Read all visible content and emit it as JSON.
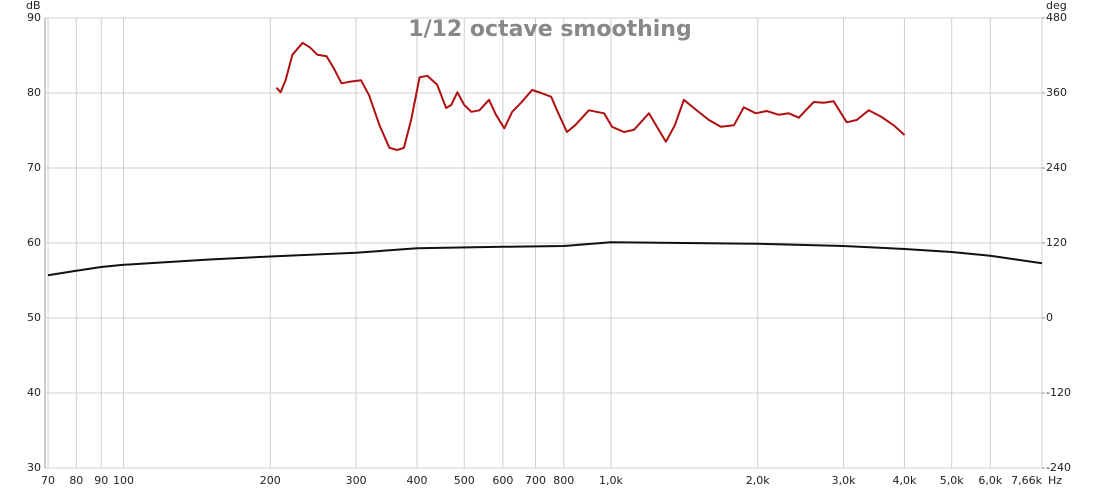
{
  "chart_data": {
    "type": "line",
    "title": "1/12 octave smoothing",
    "x_label": "Hz",
    "y_label": "dB",
    "y2_label": "deg",
    "log_x": true,
    "grid": true,
    "xlim": [
      69,
      7660
    ],
    "xticks": [
      70,
      80,
      90,
      100,
      200,
      300,
      400,
      500,
      600,
      700,
      800,
      {
        "value": 1000,
        "label": "1,0k"
      },
      {
        "value": 2000,
        "label": "2,0k"
      },
      {
        "value": 3000,
        "label": "3,0k"
      },
      {
        "value": 4000,
        "label": "4,0k"
      },
      {
        "value": 5000,
        "label": "5,0k"
      },
      {
        "value": 6000,
        "label": "6,0k"
      },
      {
        "value": 7660,
        "label": "7,66k"
      }
    ],
    "ylim": [
      30,
      90
    ],
    "yticks": [
      30,
      40,
      50,
      60,
      70,
      80,
      90
    ],
    "y2lim": [
      -240,
      480
    ],
    "y2ticks": [
      -240,
      -120,
      0,
      120,
      240,
      360,
      480
    ],
    "series": [
      {
        "color": "#111111",
        "x": [
          70,
          80,
          90,
          100,
          150,
          200,
          300,
          400,
          600,
          800,
          1000,
          2000,
          3000,
          4000,
          5000,
          6000,
          7660
        ],
        "values": [
          55.7,
          56.3,
          56.8,
          57.1,
          57.8,
          58.2,
          58.7,
          59.3,
          59.5,
          59.6,
          60.1,
          59.9,
          59.6,
          59.2,
          58.8,
          58.3,
          57.3
        ]
      },
      {
        "color": "#b01010",
        "x": [
          206,
          210,
          215,
          222,
          233,
          241,
          250,
          261,
          271,
          280,
          291,
          307,
          319,
          335,
          351,
          364,
          376,
          389,
          405,
          420,
          440,
          459,
          470,
          484,
          500,
          517,
          537,
          562,
          581,
          604,
          627,
          654,
          689,
          719,
          754,
          775,
          812,
          844,
          901,
          968,
          1005,
          1063,
          1115,
          1196,
          1296,
          1352,
          1411,
          1479,
          1588,
          1680,
          1787,
          1873,
          1982,
          2088,
          2208,
          2316,
          2428,
          2605,
          2733,
          2864,
          3045,
          3192,
          3379,
          3590,
          3802,
          4001
        ],
        "values": [
          80.7,
          80.1,
          81.7,
          85.1,
          86.7,
          86.1,
          85.1,
          84.9,
          83.1,
          81.3,
          81.5,
          81.7,
          79.7,
          75.7,
          72.7,
          72.4,
          72.7,
          76.4,
          82.1,
          82.3,
          81.1,
          78.0,
          78.4,
          80.1,
          78.4,
          77.5,
          77.7,
          79.1,
          77.1,
          75.3,
          77.5,
          78.7,
          80.4,
          80.0,
          79.5,
          77.7,
          74.8,
          75.7,
          77.7,
          77.3,
          75.5,
          74.8,
          75.1,
          77.3,
          73.5,
          75.7,
          79.1,
          78.0,
          76.4,
          75.5,
          75.7,
          78.1,
          77.3,
          77.6,
          77.1,
          77.3,
          76.7,
          78.8,
          78.7,
          78.9,
          76.1,
          76.4,
          77.7,
          76.8,
          75.7,
          74.4
        ]
      }
    ]
  }
}
